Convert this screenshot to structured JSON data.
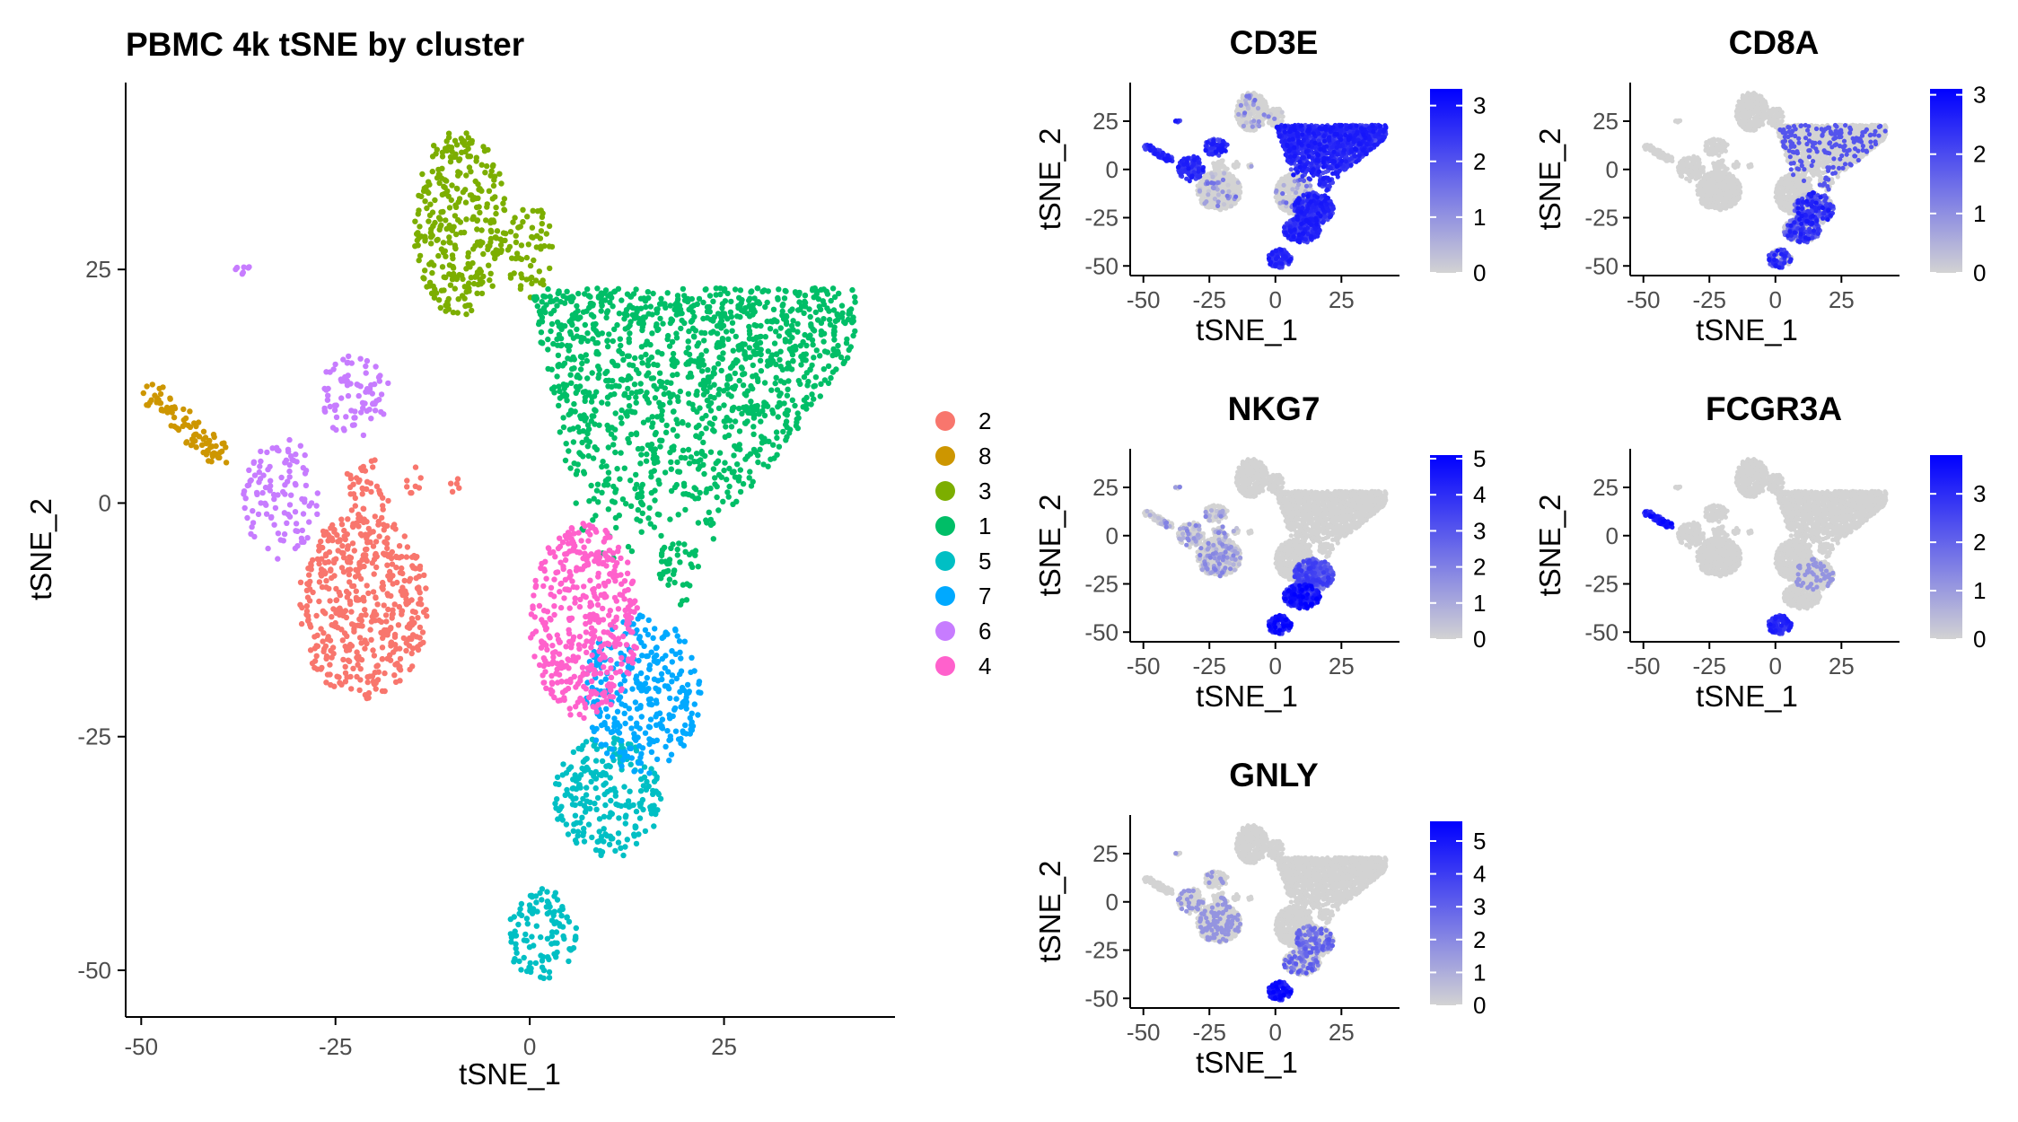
{
  "chart_data": [
    {
      "type": "scatter",
      "title": "PBMC 4k tSNE by cluster",
      "xlabel": "tSNE_1",
      "ylabel": "tSNE_2",
      "xlim": [
        -52,
        47
      ],
      "ylim": [
        -55,
        45
      ],
      "xticks": [
        -50,
        -25,
        0,
        25
      ],
      "yticks": [
        -50,
        -25,
        0,
        25
      ],
      "xtick_labels": [
        "-50",
        "-25",
        "0",
        "25"
      ],
      "ytick_labels": [
        "-50",
        "-25",
        "0",
        "25"
      ],
      "legend_position": "right",
      "series": [
        {
          "name": "2",
          "color": "#F8766D",
          "regions": [
            {
              "x": [
                -30,
                -13
              ],
              "y": [
                -21,
                -1
              ],
              "n": 480
            },
            {
              "x": [
                -24,
                -18
              ],
              "y": [
                -2,
                5
              ],
              "n": 40
            },
            {
              "x": [
                -16,
                -14
              ],
              "y": [
                1,
                4
              ],
              "n": 8
            },
            {
              "x": [
                -11,
                -9
              ],
              "y": [
                1,
                3
              ],
              "n": 5
            }
          ]
        },
        {
          "name": "8",
          "color": "#CD9600",
          "regions": [
            {
              "x": [
                -49,
                -40
              ],
              "y": [
                5,
                12
              ],
              "n": 90,
              "band": true
            }
          ]
        },
        {
          "name": "3",
          "color": "#7CAE00",
          "regions": [
            {
              "x": [
                -15,
                -3
              ],
              "y": [
                20,
                40
              ],
              "n": 320
            },
            {
              "x": [
                -3,
                3
              ],
              "y": [
                22,
                32
              ],
              "n": 60
            }
          ]
        },
        {
          "name": "1",
          "color": "#00BE67",
          "regions": [
            {
              "x": [
                0,
                42
              ],
              "y": [
                -6,
                23
              ],
              "n": 1300,
              "shape": "wedge"
            },
            {
              "x": [
                16,
                22
              ],
              "y": [
                -12,
                -4
              ],
              "n": 40
            }
          ]
        },
        {
          "name": "5",
          "color": "#00BFC4",
          "regions": [
            {
              "x": [
                3,
                17
              ],
              "y": [
                -38,
                -25
              ],
              "n": 230
            },
            {
              "x": [
                -3,
                6
              ],
              "y": [
                -51,
                -41
              ],
              "n": 110
            }
          ]
        },
        {
          "name": "7",
          "color": "#00A9FF",
          "regions": [
            {
              "x": [
                7,
                22
              ],
              "y": [
                -29,
                -12
              ],
              "n": 310
            }
          ]
        },
        {
          "name": "6",
          "color": "#C77CFF",
          "regions": [
            {
              "x": [
                -37,
                -27
              ],
              "y": [
                -6,
                7
              ],
              "n": 110
            },
            {
              "x": [
                -27,
                -18
              ],
              "y": [
                7,
                16
              ],
              "n": 80
            },
            {
              "x": [
                -38,
                -36
              ],
              "y": [
                24,
                26
              ],
              "n": 8
            }
          ]
        },
        {
          "name": "4",
          "color": "#FF61CC",
          "regions": [
            {
              "x": [
                0,
                14
              ],
              "y": [
                -23,
                -2
              ],
              "n": 430
            }
          ]
        }
      ]
    },
    {
      "type": "scatter",
      "title": "CD3E",
      "xlabel": "tSNE_1",
      "ylabel": "tSNE_2",
      "xticks": [
        -50,
        -25,
        0,
        25
      ],
      "yticks": [
        -50,
        -25,
        0,
        25
      ],
      "xtick_labels": [
        "-50",
        "-25",
        "0",
        "25"
      ],
      "ytick_labels": [
        "-50",
        "-25",
        "0",
        "25"
      ],
      "colorbar": {
        "ticks": [
          "0",
          "1",
          "2",
          "3"
        ],
        "max": 3.3,
        "low_color": "#D3D3D3",
        "high_color": "#0000FF"
      }
    },
    {
      "type": "scatter",
      "title": "CD8A",
      "xlabel": "tSNE_1",
      "ylabel": "tSNE_2",
      "xticks": [
        -50,
        -25,
        0,
        25
      ],
      "yticks": [
        -50,
        -25,
        0,
        25
      ],
      "xtick_labels": [
        "-50",
        "-25",
        "0",
        "25"
      ],
      "ytick_labels": [
        "-50",
        "-25",
        "0",
        "25"
      ],
      "colorbar": {
        "ticks": [
          "0",
          "1",
          "2",
          "3"
        ],
        "max": 3.1,
        "low_color": "#D3D3D3",
        "high_color": "#0000FF"
      }
    },
    {
      "type": "scatter",
      "title": "NKG7",
      "xlabel": "tSNE_1",
      "ylabel": "tSNE_2",
      "xticks": [
        -50,
        -25,
        0,
        25
      ],
      "yticks": [
        -50,
        -25,
        0,
        25
      ],
      "xtick_labels": [
        "-50",
        "-25",
        "0",
        "25"
      ],
      "ytick_labels": [
        "-50",
        "-25",
        "0",
        "25"
      ],
      "colorbar": {
        "ticks": [
          "0",
          "1",
          "2",
          "3",
          "4",
          "5"
        ],
        "max": 5.1,
        "low_color": "#D3D3D3",
        "high_color": "#0000FF"
      }
    },
    {
      "type": "scatter",
      "title": "FCGR3A",
      "xlabel": "tSNE_1",
      "ylabel": "tSNE_2",
      "xticks": [
        -50,
        -25,
        0,
        25
      ],
      "yticks": [
        -50,
        -25,
        0,
        25
      ],
      "xtick_labels": [
        "-50",
        "-25",
        "0",
        "25"
      ],
      "ytick_labels": [
        "-50",
        "-25",
        "0",
        "25"
      ],
      "colorbar": {
        "ticks": [
          "0",
          "1",
          "2",
          "3"
        ],
        "max": 3.8,
        "low_color": "#D3D3D3",
        "high_color": "#0000FF"
      }
    },
    {
      "type": "scatter",
      "title": "GNLY",
      "xlabel": "tSNE_1",
      "ylabel": "tSNE_2",
      "xticks": [
        -50,
        -25,
        0,
        25
      ],
      "yticks": [
        -50,
        -25,
        0,
        25
      ],
      "xtick_labels": [
        "-50",
        "-25",
        "0",
        "25"
      ],
      "ytick_labels": [
        "-50",
        "-25",
        "0",
        "25"
      ],
      "colorbar": {
        "ticks": [
          "0",
          "1",
          "2",
          "3",
          "4",
          "5"
        ],
        "max": 5.6,
        "low_color": "#D3D3D3",
        "high_color": "#0000FF"
      }
    }
  ]
}
